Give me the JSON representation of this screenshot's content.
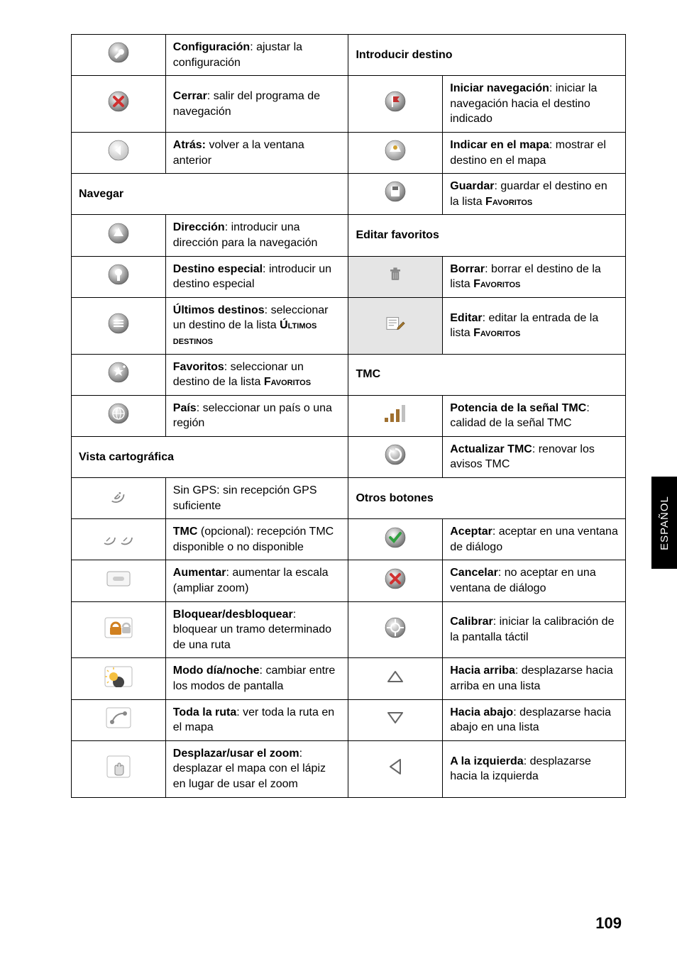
{
  "sideTab": "ESPAÑOL",
  "pageNumber": "109",
  "rows": [
    {
      "left": {
        "icon": "wrench-circle",
        "html": "<b>Configuración</b>: ajustar la configuración"
      },
      "right": {
        "icon": null,
        "html": "<b>Introducir destino</b>",
        "header": true
      }
    },
    {
      "left": {
        "icon": "x-red",
        "html": "<b>Cerrar</b>: salir del programa de navegación"
      },
      "right": {
        "icon": "flag-circle",
        "html": "<b>Iniciar navegación</b>: iniciar la navegación hacia el destino indicado"
      }
    },
    {
      "left": {
        "icon": "back-grey",
        "html": "<b>Atrás:</b> volver a la ventana anterior"
      },
      "right": {
        "icon": "map-circle",
        "html": "<b>Indicar en el mapa</b>: mostrar el destino en el mapa"
      }
    },
    {
      "left": {
        "icon": null,
        "html": "<b>Navegar</b>",
        "header": true,
        "span": true
      },
      "right": {
        "icon": "save-circle",
        "html": "<b>Guardar</b>: guardar el destino en la lista <span class='smallcaps'><b>Favoritos</b></span>"
      }
    },
    {
      "left": {
        "icon": "up-circle",
        "html": "<b>Dirección</b>: introducir una dirección para la navegación"
      },
      "right": {
        "icon": null,
        "html": "<b>Editar favoritos</b>",
        "header": true
      }
    },
    {
      "left": {
        "icon": "poi-circle",
        "html": "<b>Destino especial</b>: introducir un destino especial"
      },
      "right": {
        "icon": "trash-grey",
        "html": "<b>Borrar</b>: borrar el destino de la lista <span class='smallcaps'><b>Favoritos</b></span>",
        "bg": "#e5e5e5"
      }
    },
    {
      "left": {
        "icon": "list-circle",
        "html": "<b>Últimos destinos</b>: seleccionar un destino de la lista <span class='smallcaps'><b>Últimos destinos</b></span>"
      },
      "right": {
        "icon": "edit-grey",
        "html": "<b>Editar</b>: editar la entrada de la lista <span class='smallcaps'><b>Favoritos</b></span>",
        "bg": "#e5e5e5"
      }
    },
    {
      "left": {
        "icon": "star-plus",
        "html": "<b>Favoritos</b>: seleccionar un destino de la lista <span class='smallcaps'><b>Favoritos</b></span>"
      },
      "right": {
        "icon": null,
        "html": "<b>TMC</b>",
        "header": true
      }
    },
    {
      "left": {
        "icon": "globe-circle",
        "html": "<b>País</b>: seleccionar un país o una región"
      },
      "right": {
        "icon": "signal-bars",
        "html": "<b>Potencia de la señal TMC</b>: calidad de la señal TMC"
      }
    },
    {
      "left": {
        "icon": null,
        "html": "<b>Vista cartográfica</b>",
        "header": true,
        "span": true
      },
      "right": {
        "icon": "refresh-circle",
        "html": "<b>Actualizar TMC</b>: renovar los avisos TMC"
      }
    },
    {
      "left": {
        "icon": "sat-dish",
        "html": "Sin GPS: sin recepción GPS suficiente"
      },
      "right": {
        "icon": null,
        "html": "<b>Otros botones</b>",
        "header": true
      }
    },
    {
      "left": {
        "icon": "sat-double",
        "html": "<b>TMC</b> (opcional): recepción TMC disponible o no disponible"
      },
      "right": {
        "icon": "check-circle",
        "html": "<b>Aceptar</b>: aceptar en una ventana de diálogo"
      }
    },
    {
      "left": {
        "icon": "zoom-in-sq",
        "html": "<b>Aumentar</b>: aumentar la escala (ampliar zoom)",
        "bg": "#fff"
      },
      "right": {
        "icon": "x-circle",
        "html": "<b>Cancelar</b>: no aceptar en una ventana de diálogo"
      }
    },
    {
      "left": {
        "icon": "lock-orange",
        "html": "<b>Bloquear/desbloquear</b>: bloquear un tramo determinado de una ruta",
        "bg": "#fff"
      },
      "right": {
        "icon": "target-circle",
        "html": "<b>Calibrar</b>: iniciar la calibración de la pantalla táctil"
      }
    },
    {
      "left": {
        "icon": "daynight",
        "html": "<b>Modo día/noche</b>: cambiar entre los modos de pantalla",
        "bg": "#fff"
      },
      "right": {
        "icon": "tri-up",
        "html": "<b>Hacia arriba</b>: desplazarse hacia arriba en una lista"
      }
    },
    {
      "left": {
        "icon": "route-all",
        "html": "<b>Toda la ruta</b>: ver toda la ruta en el mapa",
        "bg": "#fff"
      },
      "right": {
        "icon": "tri-down",
        "html": "<b>Hacia abajo</b>: desplazarse hacia abajo en una lista"
      }
    },
    {
      "left": {
        "icon": "hand",
        "html": "<b>Desplazar/usar el zoom</b>: desplazar el mapa con el lápiz en lugar de usar el zoom",
        "bg": "#fff"
      },
      "right": {
        "icon": "tri-left",
        "html": "<b>A la izquierda</b>: desplazarse hacia la izquierda"
      }
    }
  ]
}
